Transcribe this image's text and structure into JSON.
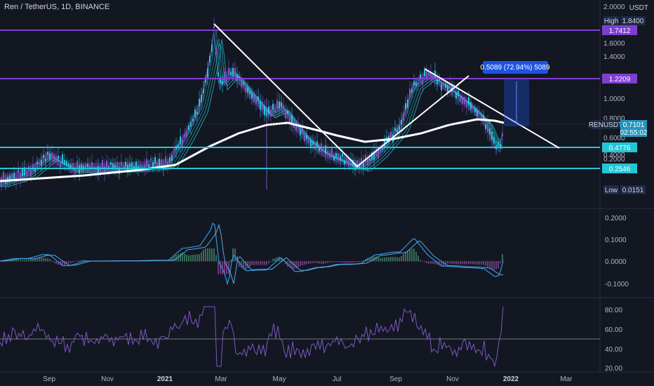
{
  "header": {
    "title": "Ren / TetherUS, 1D, BINANCE",
    "currency": "USDT"
  },
  "colors": {
    "background": "#131722",
    "purple_line": "#7e3fd0",
    "cyan_line": "#21c7d6",
    "white_line": "#ffffff",
    "macd_line": "#2a8fd8",
    "signal_line": "#5aa9e0",
    "rsi_line": "#7e57c2",
    "hist_pos": "#3a6b5a",
    "hist_neg": "#6b3a7a",
    "badge_blue": "#1e53e5"
  },
  "main_pane": {
    "price_ticks": [
      "2.0000",
      "1.6000",
      "1.4000",
      "1.0000",
      "0.8000",
      "0.6000",
      "0.4000",
      "0.2000"
    ],
    "high_label": "High",
    "high_value": "1.8400",
    "low_label": "Low",
    "low_value": "0.0151",
    "levels": [
      {
        "value": "1.7412",
        "color": "purple"
      },
      {
        "value": "1.2209",
        "color": "purple"
      },
      {
        "value": "0.4776",
        "color": "cyan"
      },
      {
        "value": "0.2546",
        "color": "cyan"
      }
    ],
    "symbol_badge": "RENUSDT",
    "last_price": "0.7101",
    "countdown": "02:55:02",
    "measure_tooltip": "0.5089 (72.94%) 5089"
  },
  "macd_pane": {
    "ticks": [
      "0.2000",
      "0.1000",
      "0.0000",
      "-0.1000"
    ]
  },
  "rsi_pane": {
    "ticks": [
      "80.00",
      "60.00",
      "40.00",
      "20.00"
    ]
  },
  "time_axis": {
    "labels": [
      {
        "text": "Sep",
        "bold": false
      },
      {
        "text": "Nov",
        "bold": false
      },
      {
        "text": "2021",
        "bold": true
      },
      {
        "text": "Mar",
        "bold": false
      },
      {
        "text": "May",
        "bold": false
      },
      {
        "text": "Jul",
        "bold": false
      },
      {
        "text": "Sep",
        "bold": false
      },
      {
        "text": "Nov",
        "bold": false
      },
      {
        "text": "2022",
        "bold": true
      },
      {
        "text": "Mar",
        "bold": false
      }
    ]
  }
}
